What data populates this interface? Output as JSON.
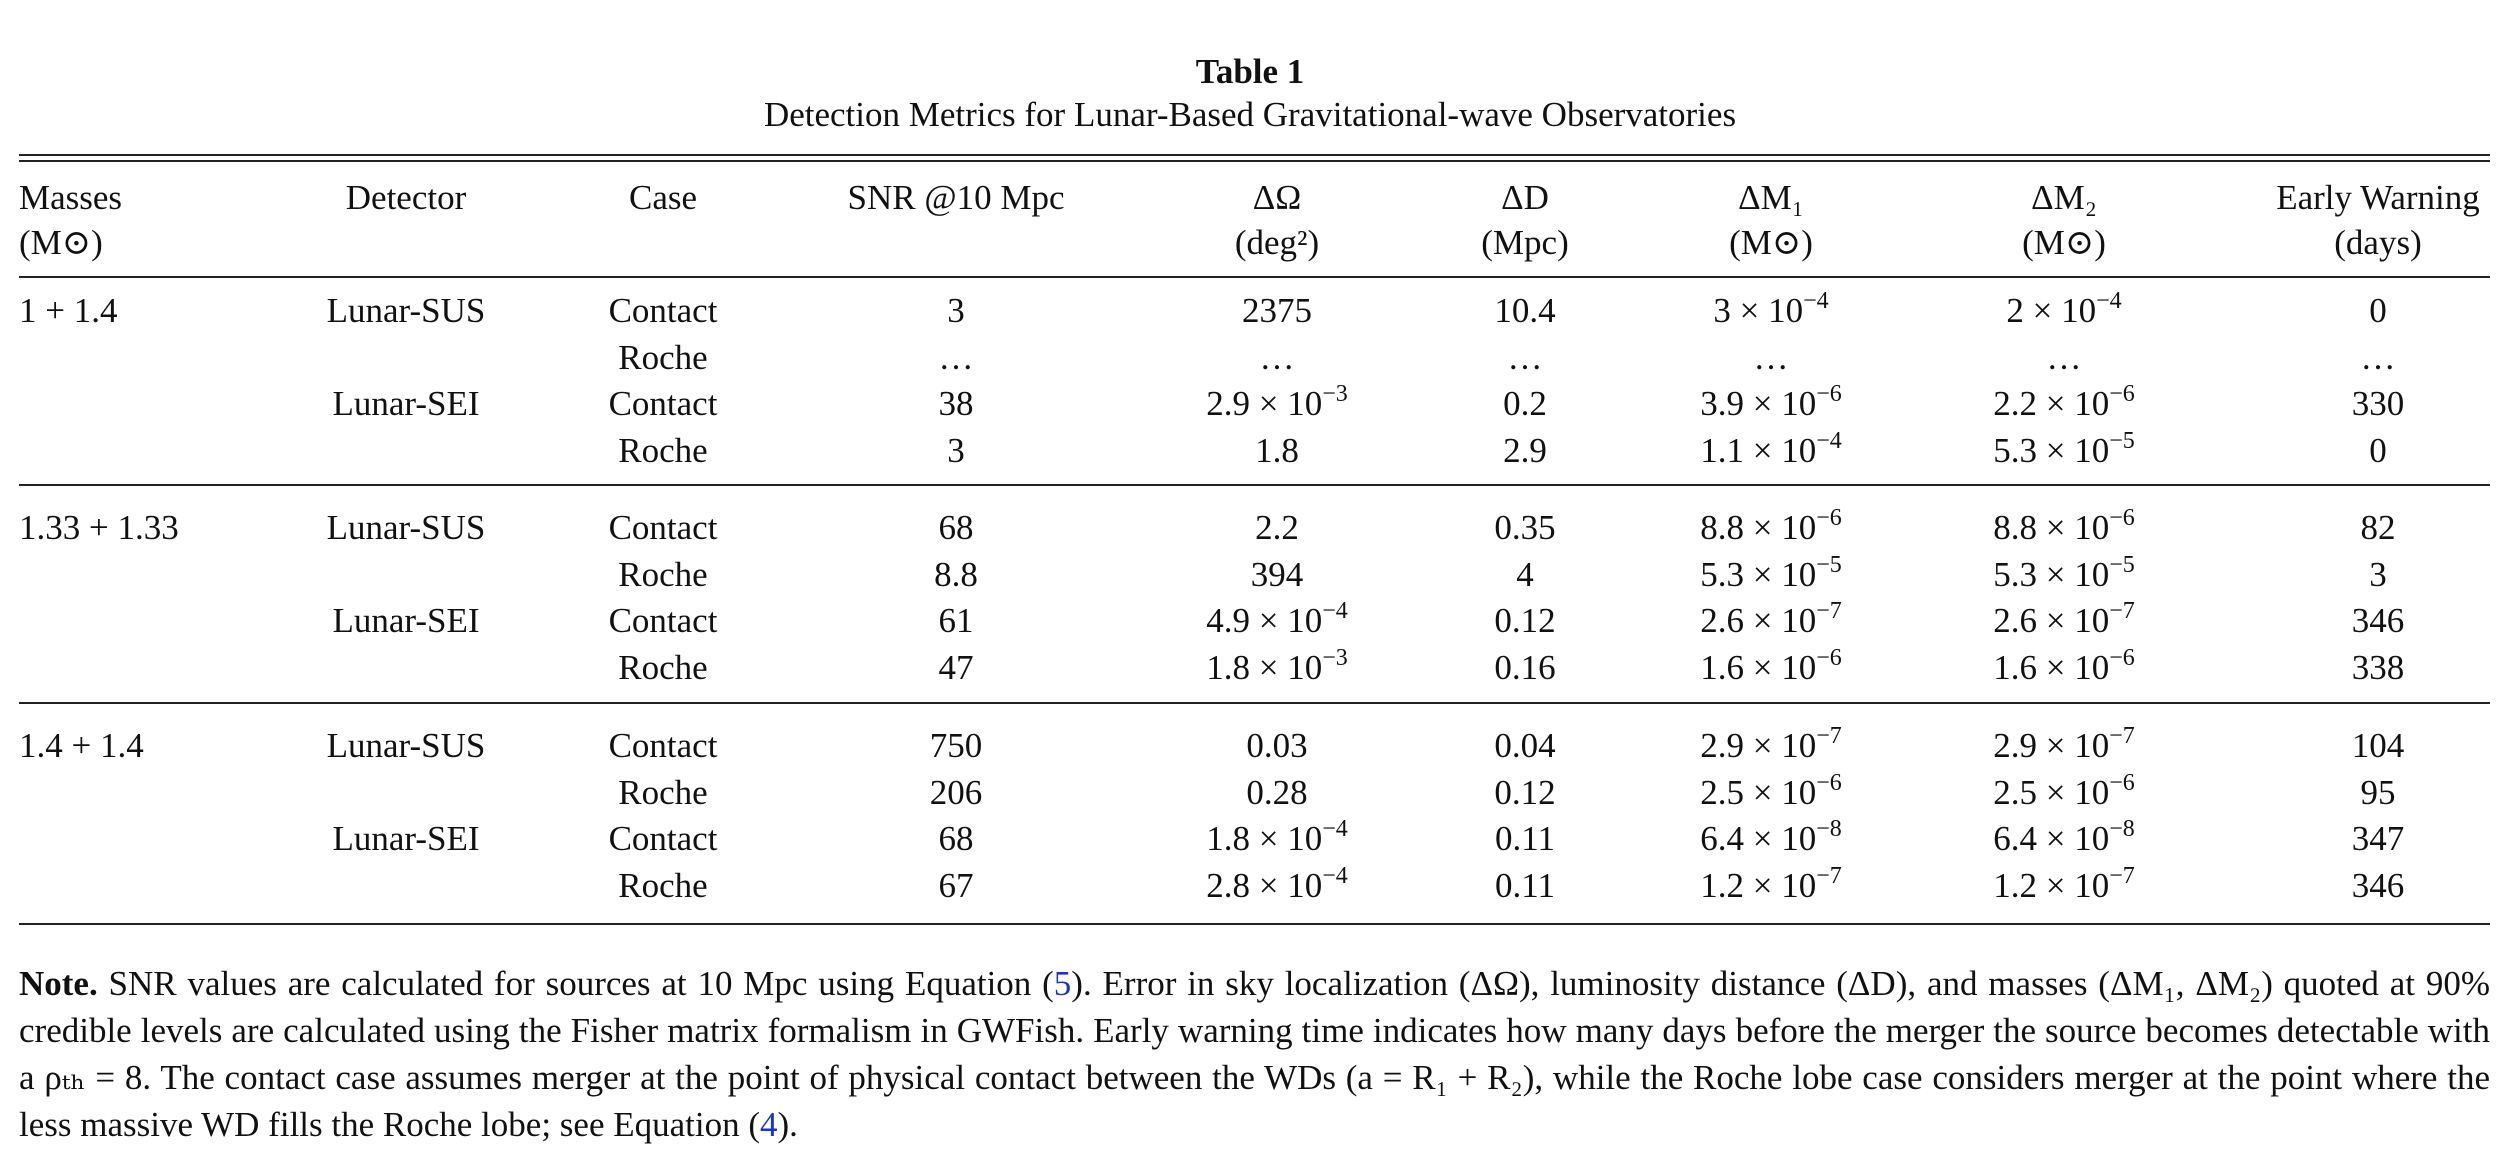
{
  "table": {
    "title": "Table 1",
    "caption": "Detection Metrics for Lunar-Based Gravitational-wave Observatories",
    "columns": [
      {
        "l1": "Masses",
        "l2": "(M⊙)"
      },
      {
        "l1": "Detector"
      },
      {
        "l1": "Case"
      },
      {
        "l1": "SNR @10 Mpc"
      },
      {
        "l1": "ΔΩ",
        "l2": "(deg²)"
      },
      {
        "l1": "ΔD",
        "l2": "(Mpc)"
      },
      {
        "l1": "ΔM₁",
        "l2": "(M⊙)"
      },
      {
        "l1": "ΔM₂",
        "l2": "(M⊙)"
      },
      {
        "l1": "Early Warning",
        "l2": "(days)"
      }
    ],
    "groups": [
      {
        "masses": "1 + 1.4",
        "detectors": [
          {
            "name": "Lunar-SUS",
            "cases": [
              {
                "case": "Contact",
                "values": [
                  "3",
                  "2375",
                  "10.4",
                  {
                    "base": "3 × 10",
                    "exp": "−4"
                  },
                  {
                    "base": "2 × 10",
                    "exp": "−4"
                  },
                  "0"
                ]
              },
              {
                "case": "Roche",
                "values": [
                  "…",
                  "…",
                  "…",
                  "…",
                  "…",
                  "…"
                ]
              }
            ]
          },
          {
            "name": "Lunar-SEI",
            "cases": [
              {
                "case": "Contact",
                "values": [
                  "38",
                  {
                    "base": "2.9 × 10",
                    "exp": "−3"
                  },
                  "0.2",
                  {
                    "base": "3.9 × 10",
                    "exp": "−6"
                  },
                  {
                    "base": "2.2 × 10",
                    "exp": "−6"
                  },
                  "330"
                ]
              },
              {
                "case": "Roche",
                "values": [
                  "3",
                  "1.8",
                  "2.9",
                  {
                    "base": "1.1 × 10",
                    "exp": "−4"
                  },
                  {
                    "base": "5.3 × 10",
                    "exp": "−5"
                  },
                  "0"
                ]
              }
            ]
          }
        ]
      },
      {
        "masses": "1.33 + 1.33",
        "detectors": [
          {
            "name": "Lunar-SUS",
            "cases": [
              {
                "case": "Contact",
                "values": [
                  "68",
                  "2.2",
                  "0.35",
                  {
                    "base": "8.8 × 10",
                    "exp": "−6"
                  },
                  {
                    "base": "8.8 × 10",
                    "exp": "−6"
                  },
                  "82"
                ]
              },
              {
                "case": "Roche",
                "values": [
                  "8.8",
                  "394",
                  "4",
                  {
                    "base": "5.3 × 10",
                    "exp": "−5"
                  },
                  {
                    "base": "5.3 × 10",
                    "exp": "−5"
                  },
                  "3"
                ]
              }
            ]
          },
          {
            "name": "Lunar-SEI",
            "cases": [
              {
                "case": "Contact",
                "values": [
                  "61",
                  {
                    "base": "4.9 × 10",
                    "exp": "−4"
                  },
                  "0.12",
                  {
                    "base": "2.6 × 10",
                    "exp": "−7"
                  },
                  {
                    "base": "2.6 × 10",
                    "exp": "−7"
                  },
                  "346"
                ]
              },
              {
                "case": "Roche",
                "values": [
                  "47",
                  {
                    "base": "1.8 × 10",
                    "exp": "−3"
                  },
                  "0.16",
                  {
                    "base": "1.6 × 10",
                    "exp": "−6"
                  },
                  {
                    "base": "1.6 × 10",
                    "exp": "−6"
                  },
                  "338"
                ]
              }
            ]
          }
        ]
      },
      {
        "masses": "1.4 + 1.4",
        "detectors": [
          {
            "name": "Lunar-SUS",
            "cases": [
              {
                "case": "Contact",
                "values": [
                  "750",
                  "0.03",
                  "0.04",
                  {
                    "base": "2.9 × 10",
                    "exp": "−7"
                  },
                  {
                    "base": "2.9 × 10",
                    "exp": "−7"
                  },
                  "104"
                ]
              },
              {
                "case": "Roche",
                "values": [
                  "206",
                  "0.28",
                  "0.12",
                  {
                    "base": "2.5 × 10",
                    "exp": "−6"
                  },
                  {
                    "base": "2.5 × 10",
                    "exp": "−6"
                  },
                  "95"
                ]
              }
            ]
          },
          {
            "name": "Lunar-SEI",
            "cases": [
              {
                "case": "Contact",
                "values": [
                  "68",
                  {
                    "base": "1.8 × 10",
                    "exp": "−4"
                  },
                  "0.11",
                  {
                    "base": "6.4 × 10",
                    "exp": "−8"
                  },
                  {
                    "base": "6.4 × 10",
                    "exp": "−8"
                  },
                  "347"
                ]
              },
              {
                "case": "Roche",
                "values": [
                  "67",
                  {
                    "base": "2.8 × 10",
                    "exp": "−4"
                  },
                  "0.11",
                  {
                    "base": "1.2 × 10",
                    "exp": "−7"
                  },
                  {
                    "base": "1.2 × 10",
                    "exp": "−7"
                  },
                  "346"
                ]
              }
            ]
          }
        ]
      }
    ],
    "note": {
      "label": "Note.",
      "parts": [
        " SNR values are calculated for sources at 10 Mpc using Equation (",
        "5",
        "). Error in sky localization (ΔΩ), luminosity distance (ΔD), and masses (ΔM₁, ΔM₂) quoted at 90% credible levels are calculated using the Fisher matrix formalism in GWFish. Early warning time indicates how many days before the merger the source becomes detectable with a ρₜₕ = 8. The contact case assumes merger at the point of physical contact between the WDs (a = R₁ + R₂), while the Roche lobe case considers merger at the point where the less massive WD fills the Roche lobe; see Equation (",
        "4",
        ")."
      ]
    }
  }
}
